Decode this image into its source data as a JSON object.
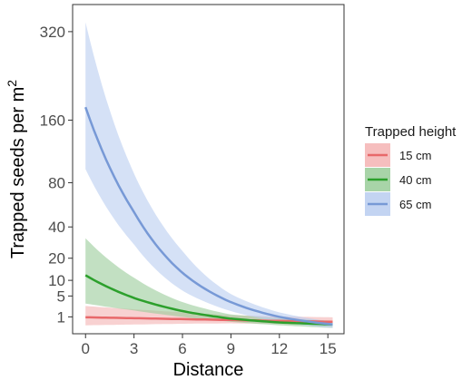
{
  "chart_data": {
    "type": "line",
    "xlabel": "Distance",
    "ylabel": "Trapped seeds per m",
    "ylabel_superscript": "2",
    "x_ticks": [
      0,
      3,
      6,
      9,
      12,
      15
    ],
    "y_ticks": [
      1,
      5,
      10,
      20,
      40,
      80,
      160,
      320
    ],
    "y_scale": "sqrt",
    "xlim": [
      -0.8,
      16.0
    ],
    "ylim": [
      0,
      380
    ],
    "legend": {
      "title": "Trapped height",
      "position": "right"
    },
    "series": [
      {
        "name": "15 cm",
        "color": "#e8686a",
        "fill": "#f4b3b3",
        "x": [
          0,
          3,
          6,
          9,
          12,
          15.3
        ],
        "y": [
          0.95,
          0.85,
          0.75,
          0.66,
          0.58,
          0.5
        ],
        "lower": [
          0.25,
          0.3,
          0.35,
          0.38,
          0.34,
          0.25
        ],
        "upper": [
          2.7,
          2.1,
          1.6,
          1.2,
          1.05,
          0.95
        ]
      },
      {
        "name": "40 cm",
        "color": "#2ca02c",
        "fill": "#99cc99",
        "x": [
          0,
          3,
          6,
          9,
          12,
          15.3
        ],
        "y": [
          12,
          4.5,
          1.8,
          0.8,
          0.45,
          0.3
        ],
        "lower": [
          3.2,
          1.9,
          1.0,
          0.5,
          0.25,
          0.12
        ],
        "upper": [
          32,
          11,
          3.5,
          1.3,
          0.85,
          0.6
        ]
      },
      {
        "name": "65 cm",
        "color": "#7799d6",
        "fill": "#b9cdf0",
        "x": [
          0,
          3,
          6,
          9,
          12,
          15.3
        ],
        "y": [
          180,
          52,
          13,
          3.5,
          1.0,
          0.3
        ],
        "lower": [
          95,
          28,
          6.5,
          1.8,
          0.5,
          0.12
        ],
        "upper": [
          340,
          90,
          24,
          5.5,
          1.6,
          0.5
        ]
      }
    ]
  }
}
